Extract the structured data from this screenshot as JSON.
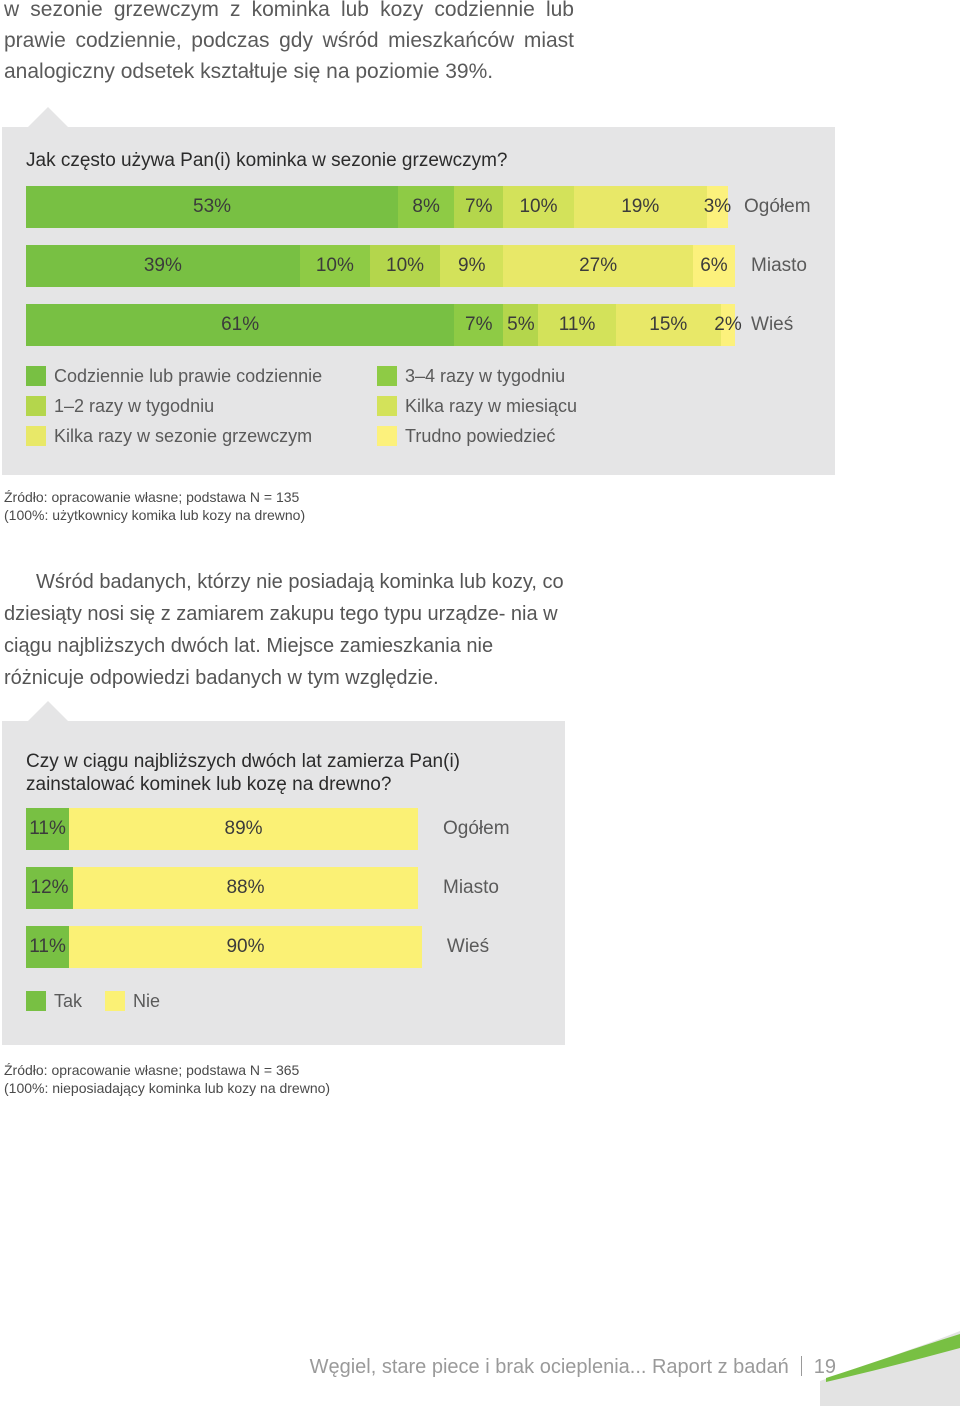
{
  "intro_text": "w sezonie grzewczym z kominka lub kozy codziennie lub prawie codziennie, podczas gdy wśród mieszkańców miast analogiczny odsetek kształtuje się na poziomie 39%.",
  "middle_text": "Wśród badanych, którzy nie posiadają kominka lub kozy, co dziesiąty nosi się z zamiarem zakupu tego typu urządze- nia w ciągu najbliższych dwóch lat. Miejsce zamieszkania nie różnicuje odpowiedzi badanych w tym względzie.",
  "footer": {
    "title": "Węgiel, stare piece i brak ocieplenia... Raport z badań",
    "page": "19"
  },
  "chart_data": [
    {
      "type": "bar",
      "stacked": true,
      "orientation": "horizontal",
      "title": "Jak często używa Pan(i) kominka w sezonie grzewczym?",
      "categories": [
        "Ogółem",
        "Miasto",
        "Wieś"
      ],
      "series": [
        {
          "name": "Codziennie lub prawie codziennie",
          "color": "#78c043",
          "values": [
            53,
            39,
            61
          ]
        },
        {
          "name": "3–4 razy w tygodniu",
          "color": "#8ecb45",
          "values": [
            8,
            10,
            7
          ]
        },
        {
          "name": "1–2 razy w tygodniu",
          "color": "#b4d64c",
          "values": [
            7,
            10,
            5
          ]
        },
        {
          "name": "Kilka razy w miesiącu",
          "color": "#d3e25a",
          "values": [
            10,
            9,
            11
          ]
        },
        {
          "name": "Kilka razy w sezonie grzewczym",
          "color": "#e8e868",
          "values": [
            19,
            27,
            15
          ]
        },
        {
          "name": "Trudno powiedzieć",
          "color": "#fcf17c",
          "values": [
            3,
            6,
            2
          ]
        }
      ],
      "labels": [
        [
          "53%",
          "8%",
          "7%",
          "10%",
          "19%",
          "3%"
        ],
        [
          "39%",
          "10%",
          "10%",
          "9%",
          "27%",
          "6%"
        ],
        [
          "61%",
          "7%",
          "5%",
          "11%",
          "15%",
          "2%"
        ]
      ],
      "legend_order": [
        0,
        2,
        4,
        1,
        3,
        5
      ],
      "source_lines": [
        "Źródło: opracowanie własne; podstawa N = 135",
        "(100%: użytkownicy komika lub kozy na drewno)"
      ]
    },
    {
      "type": "bar",
      "stacked": true,
      "orientation": "horizontal",
      "title": "Czy w ciągu najbliższych dwóch lat zamierza Pan(i) zainstalować kominek lub kozę na drewno?",
      "categories": [
        "Ogółem",
        "Miasto",
        "Wieś"
      ],
      "series": [
        {
          "name": "Tak",
          "color": "#78c043",
          "values": [
            11,
            12,
            11
          ]
        },
        {
          "name": "Nie",
          "color": "#fbf175",
          "values": [
            89,
            88,
            90
          ]
        }
      ],
      "labels": [
        [
          "11%",
          "89%"
        ],
        [
          "12%",
          "88%"
        ],
        [
          "11%",
          "90%"
        ]
      ],
      "legend_order": [
        0,
        1
      ],
      "source_lines": [
        "Źródło: opracowanie własne; podstawa N = 365",
        "(100%: nieposiadający kominka lub kozy na drewno)"
      ]
    }
  ]
}
